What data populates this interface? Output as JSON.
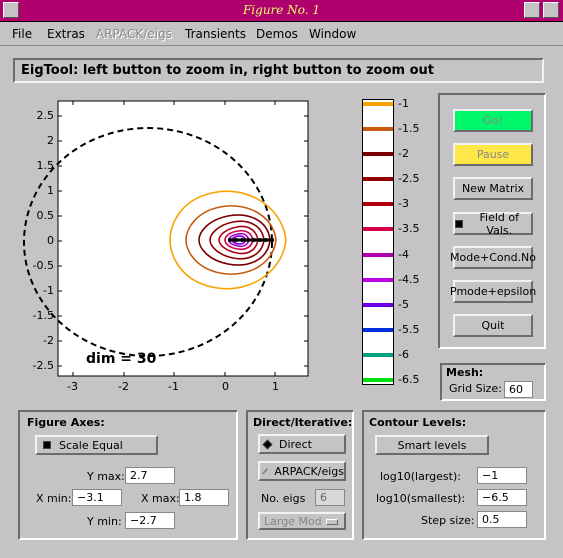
{
  "window": {
    "title": "Figure No. 1"
  },
  "menu": [
    {
      "label": "File",
      "disabled": false
    },
    {
      "label": "Extras",
      "disabled": false
    },
    {
      "label": "ARPACK/eigs",
      "disabled": true
    },
    {
      "label": "Transients",
      "disabled": false
    },
    {
      "label": "Demos",
      "disabled": false
    },
    {
      "label": "Window",
      "disabled": false
    }
  ],
  "banner": "EigTool: left button to zoom in, right button to zoom out",
  "plot": {
    "xticks": [
      "-3",
      "-2",
      "-1",
      "0",
      "1"
    ],
    "yticks": [
      "2.5",
      "2",
      "1.5",
      "1",
      "0.5",
      "0",
      "-0.5",
      "-1",
      "-1.5",
      "-2",
      "-2.5"
    ],
    "annotation": "dim = 30"
  },
  "colorbar": {
    "labels": [
      "-1",
      "-1.5",
      "-2",
      "-2.5",
      "-3",
      "-3.5",
      "-4",
      "-4.5",
      "-5",
      "-5.5",
      "-6",
      "-6.5"
    ],
    "colors": [
      "#f7a200",
      "#c85a10",
      "#7a0000",
      "#900000",
      "#b00010",
      "#d00048",
      "#b000b0",
      "#c000e0",
      "#6a00e8",
      "#0030e0",
      "#00a080",
      "#00e010"
    ]
  },
  "buttons": {
    "go": "Go!",
    "pause": "Pause",
    "new_matrix": "New Matrix",
    "field_of_vals": "Field of Vals.",
    "mode_cond": "Mode+Cond.No",
    "pmode": "Pmode+epsilon",
    "quit": "Quit"
  },
  "mesh": {
    "title": "Mesh:",
    "grid_label": "Grid Size:",
    "grid_value": "60"
  },
  "figure_axes": {
    "title": "Figure Axes:",
    "scale_equal": "Scale Equal",
    "ymax_label": "Y max:",
    "ymax": "2.7",
    "xmin_label": "X min:",
    "xmin": "−3.1",
    "xmax_label": "X max:",
    "xmax": "1.8",
    "ymin_label": "Y min:",
    "ymin": "−2.7"
  },
  "direct_iterative": {
    "title": "Direct/Iterative:",
    "direct": "Direct",
    "arpack": "ARPACK/eigs",
    "no_eigs_label": "No. eigs",
    "no_eigs": "6",
    "which": "Large Mod"
  },
  "contour_levels": {
    "title": "Contour Levels:",
    "smart": "Smart  levels",
    "largest_label": "log10(largest):",
    "largest": "−1",
    "smallest_label": "log10(smallest):",
    "smallest": "−6.5",
    "step_label": "Step size:",
    "step": "0.5"
  }
}
